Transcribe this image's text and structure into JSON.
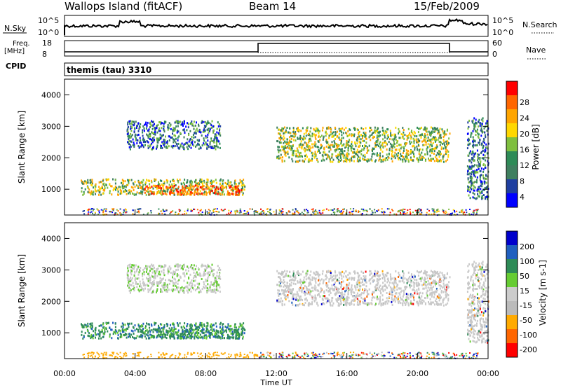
{
  "header": {
    "station": "Wallops Island (fitACF)",
    "beam": "Beam 14",
    "date": "15/Feb/2009"
  },
  "top_panels": {
    "nsky_label": "N.Sky",
    "nsky_ticks": [
      "10^5",
      "10^0"
    ],
    "nsearch_label": "N.Search",
    "nsearch_ticks": [
      "10^5",
      "10^0"
    ],
    "freq_label_1": "Freq.",
    "freq_label_2": "[MHz]",
    "freq_ticks": [
      "18",
      "8"
    ],
    "nave_label": "Nave",
    "nave_ticks": [
      "60",
      "0"
    ],
    "cpid_label": "CPID",
    "cpid_value": "themis (tau) 3310"
  },
  "colors": {
    "power_scale": [
      "#0000ff",
      "#1f3fa0",
      "#3f7f5f",
      "#2e8b57",
      "#7fbf3f",
      "#ffd700",
      "#ffa500",
      "#ff6600",
      "#ff0000"
    ],
    "velocity_scale": [
      "#0000cc",
      "#1f5fbf",
      "#2e8b57",
      "#66cc33",
      "#cccccc",
      "#bbbbbb",
      "#ffaa00",
      "#ff6600",
      "#ff0000"
    ]
  },
  "chart_data": [
    {
      "type": "heatmap",
      "name": "power",
      "ylabel": "Slant Range [km]",
      "yticks": [
        "4000",
        "3000",
        "2000",
        "1000"
      ],
      "yrange": [
        180,
        4500
      ],
      "xrange": [
        "00:00",
        "24:00"
      ],
      "colorbar_label": "Power [dB]",
      "colorbar_ticks": [
        "28",
        "24",
        "20",
        "16",
        "12",
        "8",
        "4"
      ],
      "regions": [
        {
          "t0": 0.9,
          "t1": 10.2,
          "r0": 850,
          "r1": 1350,
          "level": "mid"
        },
        {
          "t0": 4.5,
          "t1": 10.0,
          "r0": 850,
          "r1": 1150,
          "level": "high"
        },
        {
          "t0": 3.5,
          "t1": 8.8,
          "r0": 2300,
          "r1": 3200,
          "level": "low"
        },
        {
          "t0": 12.0,
          "t1": 21.8,
          "r0": 1900,
          "r1": 3000,
          "level": "mid"
        },
        {
          "t0": 22.8,
          "t1": 24.0,
          "r0": 700,
          "r1": 3300,
          "level": "low"
        }
      ]
    },
    {
      "type": "heatmap",
      "name": "velocity",
      "ylabel": "Slant Range [km]",
      "yticks": [
        "4000",
        "3000",
        "2000",
        "1000"
      ],
      "yrange": [
        180,
        4500
      ],
      "xlabel": "Time UT",
      "xticks": [
        "00:00",
        "04:00",
        "08:00",
        "12:00",
        "16:00",
        "20:00",
        "00:00"
      ],
      "colorbar_label": "Velocity [m s-1]",
      "colorbar_ticks": [
        "200",
        "100",
        "50",
        "15",
        "-15",
        "-50",
        "-100",
        "-200"
      ]
    }
  ]
}
